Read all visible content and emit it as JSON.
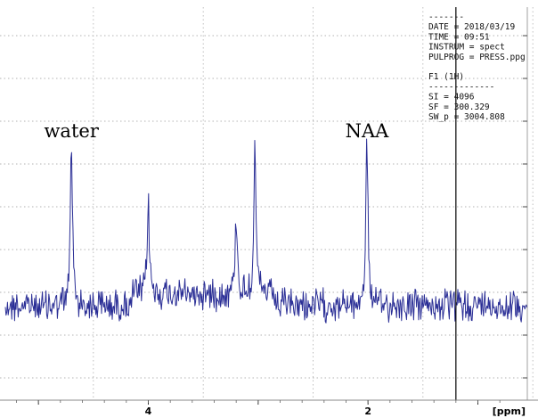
{
  "chart_data": {
    "type": "line",
    "title": "",
    "xlabel": "[ppm]",
    "ylabel": "",
    "x_reversed": true,
    "xlim": [
      5.35,
      0.55
    ],
    "x_ticks": [
      {
        "value": 4,
        "label": "4"
      },
      {
        "value": 2,
        "label": "2"
      }
    ],
    "grid": "dotted",
    "series": [
      {
        "color": "#2b2f96",
        "peaks": [
          {
            "ppm": 4.7,
            "height": 1.0
          },
          {
            "ppm": 4.0,
            "height": 0.55
          },
          {
            "ppm": 3.2,
            "height": 0.48
          },
          {
            "ppm": 3.03,
            "height": 0.87
          },
          {
            "ppm": 2.01,
            "height": 1.0
          }
        ]
      }
    ],
    "annotations": [
      {
        "text": "water",
        "ppm": 4.7
      },
      {
        "text": "NAA",
        "ppm": 2.01
      }
    ],
    "vertical_marker_ppm": 1.2,
    "parameters": [
      "-------",
      "DATE = 2018/03/19",
      "TIME = 09:51",
      "INSTRUM = spect",
      "PULPROG = PRESS.ppg",
      "",
      "F1 (1H)",
      "-------------",
      "SI = 4096",
      "SF = 300.329",
      "SW_p = 3004.808"
    ]
  }
}
